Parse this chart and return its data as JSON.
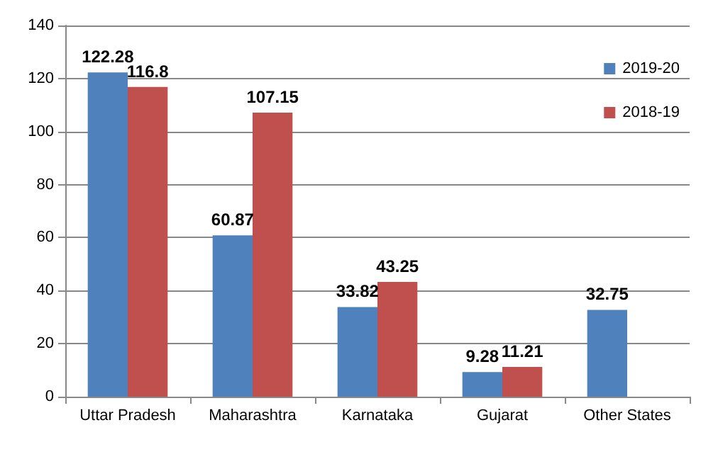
{
  "chart_data": {
    "type": "bar",
    "categories": [
      "Uttar Pradesh",
      "Maharashtra",
      "Karnataka",
      "Gujarat",
      "Other States"
    ],
    "series": [
      {
        "name": "2019-20",
        "color": "#4f81bd",
        "values": [
          122.28,
          60.87,
          33.82,
          9.28,
          32.75
        ]
      },
      {
        "name": "2018-19",
        "color": "#c0504d",
        "values": [
          116.8,
          107.15,
          43.25,
          11.21,
          null
        ]
      }
    ],
    "ylim": [
      0,
      140
    ],
    "yticks": [
      0,
      20,
      40,
      60,
      80,
      100,
      120,
      140
    ],
    "grid": "y",
    "legend": "top right",
    "data_labels": true
  }
}
